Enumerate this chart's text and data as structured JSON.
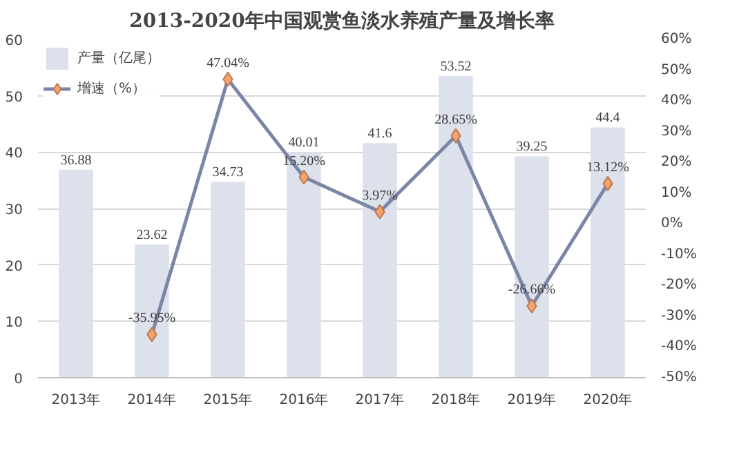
{
  "chart_data": {
    "type": "bar",
    "title": "2013-2020年中国观赏鱼淡水养殖产量及增长率",
    "categories": [
      "2013年",
      "2014年",
      "2015年",
      "2016年",
      "2017年",
      "2018年",
      "2019年",
      "2020年"
    ],
    "series": [
      {
        "name": "产量（亿尾）",
        "color": "#dde1ec",
        "values": [
          36.88,
          23.62,
          34.73,
          40.01,
          41.6,
          53.52,
          39.25,
          44.4
        ]
      },
      {
        "name": "增速（%）",
        "type": "line",
        "axis": "y2",
        "color": "#7b86a6",
        "marker": "diamond",
        "values": [
          null,
          -35.95,
          47.04,
          15.2,
          3.97,
          28.65,
          -26.66,
          13.12
        ],
        "value_labels": [
          null,
          "-35.95%",
          "47.04%",
          "15.20%",
          "3.97%",
          "28.65%",
          "-26.66%",
          "13.12%"
        ]
      }
    ],
    "data_labels": true,
    "ylim": [
      0,
      60
    ],
    "yticks": [
      0,
      10,
      20,
      30,
      40,
      50,
      60
    ],
    "y2lim": [
      -50,
      60
    ],
    "y2ticks": [
      {
        "value": -50,
        "label": "-50%"
      },
      {
        "value": -40,
        "label": "-40%"
      },
      {
        "value": -30,
        "label": "-30%"
      },
      {
        "value": -20,
        "label": "-20%"
      },
      {
        "value": -10,
        "label": "-10%"
      },
      {
        "value": 0,
        "label": "0%"
      },
      {
        "value": 10,
        "label": "10%"
      },
      {
        "value": 20,
        "label": "20%"
      },
      {
        "value": 30,
        "label": "30%"
      },
      {
        "value": 40,
        "label": "40%"
      },
      {
        "value": 50,
        "label": "50%"
      },
      {
        "value": 60,
        "label": "60%"
      }
    ],
    "grid": "y",
    "legend": "top left"
  }
}
